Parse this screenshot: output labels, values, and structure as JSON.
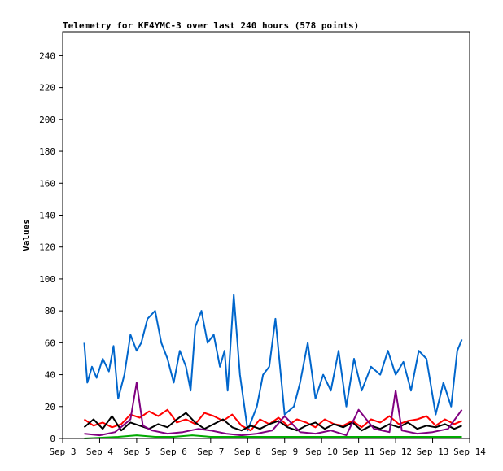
{
  "chart_data": {
    "type": "line",
    "title": "Telemetry for KF4YMC-3 over last 240 hours (578 points)",
    "xlabel": "",
    "ylabel": "Values",
    "xlim": [
      "2023-09-03",
      "2023-09-14"
    ],
    "ylim": [
      0,
      255
    ],
    "x_ticks": [
      "Sep 3",
      "Sep 4",
      "Sep 5",
      "Sep 6",
      "Sep 7",
      "Sep 8",
      "Sep 9",
      "Sep 10",
      "Sep 11",
      "Sep 12",
      "Sep 13",
      "Sep 14"
    ],
    "y_ticks": [
      0,
      20,
      40,
      60,
      80,
      100,
      120,
      140,
      160,
      180,
      200,
      220,
      240
    ],
    "grid": false,
    "legend": "none",
    "series": [
      {
        "color": "#0066cc",
        "x": [
          "2023-09-03T14:00",
          "2023-09-03T16:00",
          "2023-09-03T19:00",
          "2023-09-03T22:00",
          "2023-09-04T02:00",
          "2023-09-04T06:00",
          "2023-09-04T09:00",
          "2023-09-04T12:00",
          "2023-09-04T16:00",
          "2023-09-04T20:00",
          "2023-09-05T00:00",
          "2023-09-05T03:00",
          "2023-09-05T07:00",
          "2023-09-05T12:00",
          "2023-09-05T16:00",
          "2023-09-05T20:00",
          "2023-09-06T00:00",
          "2023-09-06T04:00",
          "2023-09-06T08:00",
          "2023-09-06T11:00",
          "2023-09-06T14:00",
          "2023-09-06T18:00",
          "2023-09-06T22:00",
          "2023-09-07T02:00",
          "2023-09-07T06:00",
          "2023-09-07T09:00",
          "2023-09-07T11:00",
          "2023-09-07T13:00",
          "2023-09-07T15:00",
          "2023-09-07T19:00",
          "2023-09-08T00:00",
          "2023-09-08T06:00",
          "2023-09-08T10:00",
          "2023-09-08T14:00",
          "2023-09-08T18:00",
          "2023-09-09T00:00",
          "2023-09-09T06:00",
          "2023-09-09T10:00",
          "2023-09-09T15:00",
          "2023-09-09T20:00",
          "2023-09-10T01:00",
          "2023-09-10T06:00",
          "2023-09-10T11:00",
          "2023-09-10T16:00",
          "2023-09-10T21:00",
          "2023-09-11T02:00",
          "2023-09-11T08:00",
          "2023-09-11T14:00",
          "2023-09-11T19:00",
          "2023-09-12T00:00",
          "2023-09-12T05:00",
          "2023-09-12T10:00",
          "2023-09-12T15:00",
          "2023-09-12T20:00",
          "2023-09-13T02:00",
          "2023-09-13T07:00",
          "2023-09-13T12:00",
          "2023-09-13T16:00",
          "2023-09-13T19:00"
        ],
        "y": [
          60,
          35,
          45,
          38,
          50,
          42,
          58,
          25,
          40,
          65,
          55,
          60,
          75,
          80,
          60,
          50,
          35,
          55,
          45,
          30,
          70,
          80,
          60,
          65,
          45,
          55,
          30,
          60,
          90,
          40,
          5,
          20,
          40,
          45,
          75,
          15,
          20,
          35,
          60,
          25,
          40,
          30,
          55,
          20,
          50,
          30,
          45,
          40,
          55,
          40,
          48,
          30,
          55,
          50,
          15,
          35,
          20,
          55,
          62
        ]
      },
      {
        "color": "#ff0000",
        "x": [
          "2023-09-03T14:00",
          "2023-09-03T20:00",
          "2023-09-04T02:00",
          "2023-09-04T08:00",
          "2023-09-04T14:00",
          "2023-09-04T20:00",
          "2023-09-05T02:00",
          "2023-09-05T08:00",
          "2023-09-05T14:00",
          "2023-09-05T20:00",
          "2023-09-06T02:00",
          "2023-09-06T08:00",
          "2023-09-06T14:00",
          "2023-09-06T20:00",
          "2023-09-07T02:00",
          "2023-09-07T08:00",
          "2023-09-07T14:00",
          "2023-09-07T20:00",
          "2023-09-08T02:00",
          "2023-09-08T08:00",
          "2023-09-08T14:00",
          "2023-09-08T20:00",
          "2023-09-09T02:00",
          "2023-09-09T08:00",
          "2023-09-09T14:00",
          "2023-09-09T20:00",
          "2023-09-10T02:00",
          "2023-09-10T08:00",
          "2023-09-10T14:00",
          "2023-09-10T20:00",
          "2023-09-11T02:00",
          "2023-09-11T08:00",
          "2023-09-11T14:00",
          "2023-09-11T20:00",
          "2023-09-12T02:00",
          "2023-09-12T08:00",
          "2023-09-12T14:00",
          "2023-09-12T20:00",
          "2023-09-13T02:00",
          "2023-09-13T08:00",
          "2023-09-13T14:00",
          "2023-09-13T19:00"
        ],
        "y": [
          12,
          8,
          10,
          7,
          9,
          15,
          13,
          17,
          14,
          18,
          10,
          12,
          9,
          16,
          14,
          11,
          15,
          8,
          5,
          12,
          9,
          13,
          8,
          12,
          10,
          7,
          12,
          9,
          8,
          11,
          7,
          12,
          10,
          14,
          9,
          11,
          12,
          14,
          8,
          12,
          9,
          11
        ]
      },
      {
        "color": "#000000",
        "x": [
          "2023-09-03T14:00",
          "2023-09-03T20:00",
          "2023-09-04T02:00",
          "2023-09-04T08:00",
          "2023-09-04T14:00",
          "2023-09-04T20:00",
          "2023-09-05T02:00",
          "2023-09-05T08:00",
          "2023-09-05T14:00",
          "2023-09-05T20:00",
          "2023-09-06T02:00",
          "2023-09-06T08:00",
          "2023-09-06T14:00",
          "2023-09-06T20:00",
          "2023-09-07T02:00",
          "2023-09-07T08:00",
          "2023-09-07T14:00",
          "2023-09-07T20:00",
          "2023-09-08T02:00",
          "2023-09-08T08:00",
          "2023-09-08T14:00",
          "2023-09-08T20:00",
          "2023-09-09T02:00",
          "2023-09-09T08:00",
          "2023-09-09T14:00",
          "2023-09-09T20:00",
          "2023-09-10T02:00",
          "2023-09-10T08:00",
          "2023-09-10T14:00",
          "2023-09-10T20:00",
          "2023-09-11T02:00",
          "2023-09-11T08:00",
          "2023-09-11T14:00",
          "2023-09-11T20:00",
          "2023-09-12T02:00",
          "2023-09-12T08:00",
          "2023-09-12T14:00",
          "2023-09-12T20:00",
          "2023-09-13T02:00",
          "2023-09-13T08:00",
          "2023-09-13T14:00",
          "2023-09-13T19:00"
        ],
        "y": [
          7,
          12,
          6,
          14,
          5,
          10,
          8,
          6,
          9,
          7,
          12,
          16,
          10,
          6,
          9,
          12,
          7,
          5,
          8,
          6,
          9,
          11,
          7,
          5,
          8,
          10,
          6,
          9,
          7,
          10,
          5,
          8,
          6,
          9,
          7,
          10,
          6,
          8,
          7,
          9,
          6,
          8
        ]
      },
      {
        "color": "#800080",
        "x": [
          "2023-09-03T14:00",
          "2023-09-04T00:00",
          "2023-09-04T10:00",
          "2023-09-04T20:00",
          "2023-09-05T00:00",
          "2023-09-05T04:00",
          "2023-09-05T10:00",
          "2023-09-05T20:00",
          "2023-09-06T06:00",
          "2023-09-06T16:00",
          "2023-09-07T00:00",
          "2023-09-07T10:00",
          "2023-09-07T20:00",
          "2023-09-08T06:00",
          "2023-09-08T16:00",
          "2023-09-09T00:00",
          "2023-09-09T10:00",
          "2023-09-09T20:00",
          "2023-09-10T06:00",
          "2023-09-10T16:00",
          "2023-09-11T00:00",
          "2023-09-11T10:00",
          "2023-09-11T20:00",
          "2023-09-12T00:00",
          "2023-09-12T04:00",
          "2023-09-12T14:00",
          "2023-09-13T00:00",
          "2023-09-13T10:00",
          "2023-09-13T19:00"
        ],
        "y": [
          3,
          2,
          4,
          12,
          35,
          8,
          5,
          3,
          4,
          6,
          5,
          3,
          2,
          3,
          5,
          14,
          4,
          3,
          5,
          2,
          18,
          6,
          4,
          30,
          5,
          3,
          4,
          6,
          18
        ]
      },
      {
        "color": "#00aa00",
        "x": [
          "2023-09-03T14:00",
          "2023-09-04T12:00",
          "2023-09-05T00:00",
          "2023-09-05T12:00",
          "2023-09-06T00:00",
          "2023-09-06T12:00",
          "2023-09-07T00:00",
          "2023-09-07T12:00",
          "2023-09-08T00:00",
          "2023-09-08T12:00",
          "2023-09-09T00:00",
          "2023-09-09T12:00",
          "2023-09-10T00:00",
          "2023-09-10T12:00",
          "2023-09-11T00:00",
          "2023-09-11T12:00",
          "2023-09-12T00:00",
          "2023-09-12T12:00",
          "2023-09-13T00:00",
          "2023-09-13T12:00",
          "2023-09-13T19:00"
        ],
        "y": [
          0,
          1,
          2,
          1,
          1,
          2,
          1,
          1,
          1,
          1,
          1,
          1,
          1,
          1,
          1,
          1,
          1,
          1,
          1,
          1,
          1
        ]
      }
    ]
  }
}
